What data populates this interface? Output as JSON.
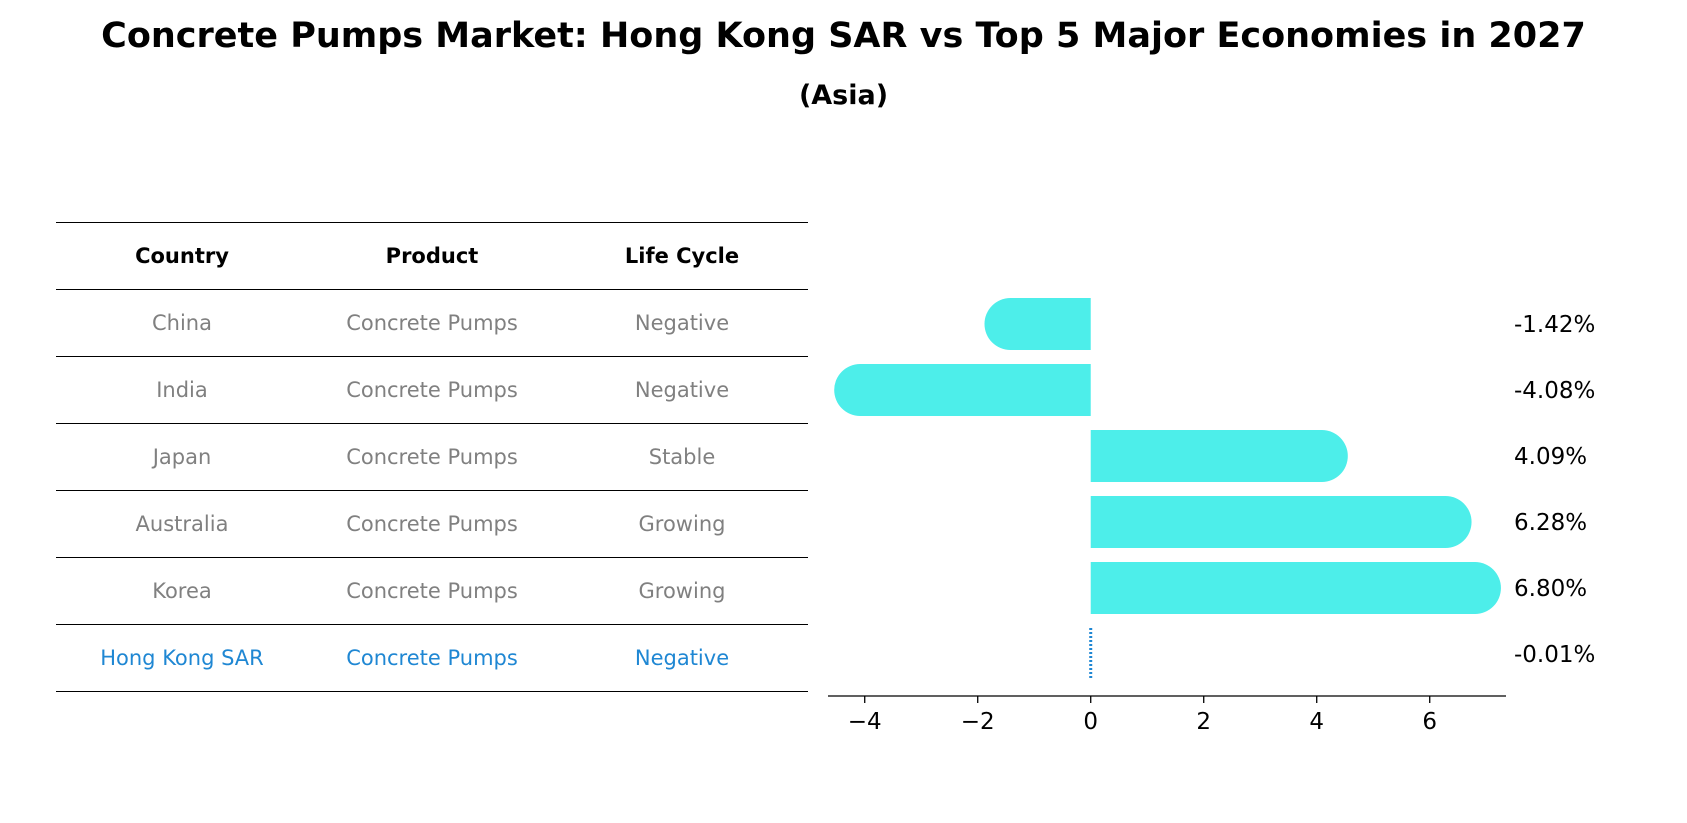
{
  "title": "Concrete Pumps Market: Hong Kong SAR vs Top 5 Major Economies in 2027",
  "subtitle": "(Asia)",
  "table": {
    "headers": [
      "Country",
      "Product",
      "Life Cycle"
    ],
    "rows": [
      [
        "China",
        "Concrete Pumps",
        "Negative"
      ],
      [
        "India",
        "Concrete Pumps",
        "Negative"
      ],
      [
        "Japan",
        "Concrete Pumps",
        "Stable"
      ],
      [
        "Australia",
        "Concrete Pumps",
        "Growing"
      ],
      [
        "Korea",
        "Concrete Pumps",
        "Growing"
      ],
      [
        "Hong Kong SAR",
        "Concrete Pumps",
        "Negative"
      ]
    ],
    "highlight_row": 5
  },
  "chart_data": {
    "type": "bar",
    "orientation": "horizontal",
    "categories": [
      "China",
      "India",
      "Japan",
      "Australia",
      "Korea",
      "Hong Kong SAR"
    ],
    "values": [
      -1.42,
      -4.08,
      4.09,
      6.28,
      6.8,
      -0.01
    ],
    "data_labels": [
      "-1.42%",
      "-4.08%",
      "4.09%",
      "6.28%",
      "6.80%",
      "-0.01%"
    ],
    "xlim": [
      -4.65,
      7.35
    ],
    "xticks": [
      -4,
      -2,
      0,
      2,
      4,
      6
    ],
    "xtick_labels": [
      "−4",
      "−2",
      "0",
      "2",
      "4",
      "6"
    ],
    "grid": false,
    "colors": {
      "bar": "#4deeea",
      "highlight_line": "#1f87d3"
    }
  }
}
